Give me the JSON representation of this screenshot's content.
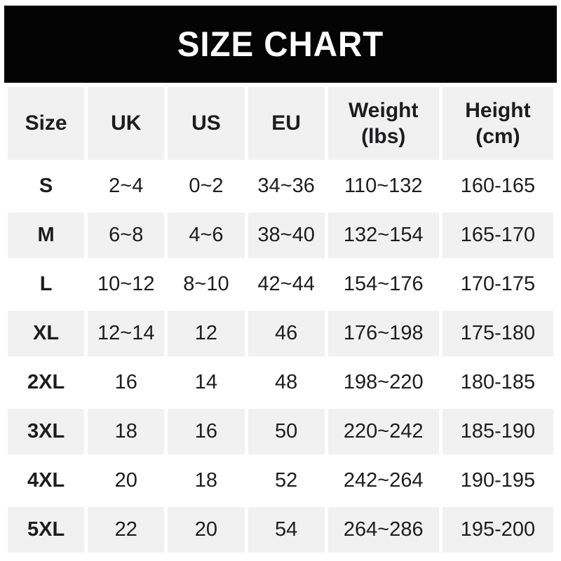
{
  "title": "SIZE CHART",
  "colors": {
    "banner_bg": "#040404",
    "banner_text": "#ffffff",
    "alt_row_bg": "#f1f1f2",
    "text": "#1d1d1f",
    "page_bg": "#ffffff"
  },
  "chart_data": {
    "type": "table",
    "title": "SIZE CHART",
    "columns": [
      "Size",
      "UK",
      "US",
      "EU",
      "Weight (lbs)",
      "Height (cm)"
    ],
    "header_lines": [
      [
        "Size"
      ],
      [
        "UK"
      ],
      [
        "US"
      ],
      [
        "EU"
      ],
      [
        "Weight",
        "(lbs)"
      ],
      [
        "Height",
        "(cm)"
      ]
    ],
    "rows": [
      [
        "S",
        "2~4",
        "0~2",
        "34~36",
        "110~132",
        "160-165"
      ],
      [
        "M",
        "6~8",
        "4~6",
        "38~40",
        "132~154",
        "165-170"
      ],
      [
        "L",
        "10~12",
        "8~10",
        "42~44",
        "154~176",
        "170-175"
      ],
      [
        "XL",
        "12~14",
        "12",
        "46",
        "176~198",
        "175-180"
      ],
      [
        "2XL",
        "16",
        "14",
        "48",
        "198~220",
        "180-185"
      ],
      [
        "3XL",
        "18",
        "16",
        "50",
        "220~242",
        "185-190"
      ],
      [
        "4XL",
        "20",
        "18",
        "52",
        "242~264",
        "190-195"
      ],
      [
        "5XL",
        "22",
        "20",
        "54",
        "264~286",
        "195-200"
      ]
    ]
  }
}
